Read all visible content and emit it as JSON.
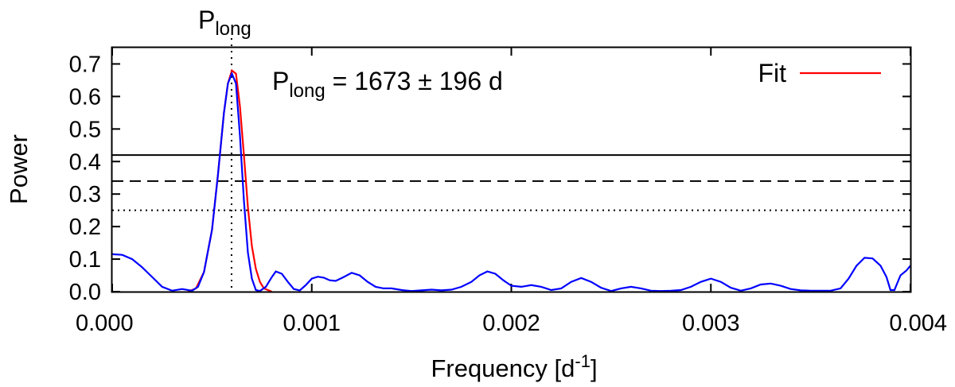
{
  "chart_data": {
    "type": "line",
    "title": "",
    "xlabel": "Frequency [d",
    "xlabel_superscript": "-1",
    "xlabel_suffix": "]",
    "ylabel": "Power",
    "xlim": [
      0.0,
      0.004
    ],
    "ylim": [
      0.0,
      0.75
    ],
    "x_ticks": [
      "0.000",
      "0.001",
      "0.002",
      "0.003",
      "0.004"
    ],
    "y_ticks": [
      "0.0",
      "0.1",
      "0.2",
      "0.3",
      "0.4",
      "0.5",
      "0.6",
      "0.7"
    ],
    "grid": false,
    "legend_position": "top-right",
    "colors": {
      "periodogram": "#0000ff",
      "fit": "#ff0000",
      "lines": "#000000"
    },
    "top_label": {
      "base": "P",
      "subscript": "long"
    },
    "annotation": {
      "base": "P",
      "subscript": "long",
      "rest": " = 1673 ± 196 d"
    },
    "peak_marker_x": 0.000598,
    "fap_levels": [
      {
        "style": "solid",
        "y": 0.42
      },
      {
        "style": "dashed",
        "y": 0.34
      },
      {
        "style": "dotted",
        "y": 0.25
      }
    ],
    "series": [
      {
        "name": "Fit",
        "style": "red-line",
        "x": [
          0.00038,
          0.00042,
          0.00046,
          0.0005,
          0.00053,
          0.00056,
          0.00058,
          0.0006,
          0.00062,
          0.00064,
          0.00066,
          0.00068,
          0.0007,
          0.00072,
          0.00074,
          0.00076,
          0.00078,
          0.0008
        ],
        "y": [
          0.0,
          0.01,
          0.06,
          0.19,
          0.36,
          0.55,
          0.64,
          0.68,
          0.67,
          0.57,
          0.42,
          0.26,
          0.14,
          0.07,
          0.03,
          0.01,
          0.005,
          0.0
        ]
      },
      {
        "name": "",
        "style": "blue-line",
        "x": [
          0.0,
          5e-05,
          0.0001,
          0.00015,
          0.0002,
          0.00025,
          0.0003,
          0.00035,
          0.0004,
          0.00043,
          0.00046,
          0.0005,
          0.00053,
          0.00056,
          0.00058,
          0.0006,
          0.00062,
          0.00064,
          0.00066,
          0.00068,
          0.0007,
          0.00072,
          0.00074,
          0.00077,
          0.0008,
          0.00082,
          0.00085,
          0.00088,
          0.00091,
          0.00094,
          0.00097,
          0.001,
          0.00103,
          0.00106,
          0.00109,
          0.00112,
          0.00116,
          0.0012,
          0.00124,
          0.00128,
          0.00132,
          0.00136,
          0.0014,
          0.00145,
          0.0015,
          0.00155,
          0.0016,
          0.00165,
          0.0017,
          0.00175,
          0.0018,
          0.00184,
          0.00188,
          0.00192,
          0.00196,
          0.002,
          0.00205,
          0.0021,
          0.00215,
          0.0022,
          0.00225,
          0.0023,
          0.00235,
          0.0024,
          0.00245,
          0.0025,
          0.00255,
          0.0026,
          0.00265,
          0.0027,
          0.00275,
          0.0028,
          0.00285,
          0.0029,
          0.00295,
          0.003,
          0.00305,
          0.0031,
          0.00315,
          0.0032,
          0.00325,
          0.0033,
          0.00335,
          0.0034,
          0.00345,
          0.0035,
          0.00355,
          0.0036,
          0.00365,
          0.00369,
          0.00373,
          0.00377,
          0.00381,
          0.00385,
          0.00388,
          0.0039,
          0.00392,
          0.00395,
          0.00398,
          0.004
        ],
        "y": [
          0.115,
          0.113,
          0.1,
          0.075,
          0.045,
          0.015,
          0.003,
          0.008,
          0.003,
          0.015,
          0.06,
          0.19,
          0.36,
          0.55,
          0.64,
          0.67,
          0.64,
          0.48,
          0.28,
          0.12,
          0.04,
          0.005,
          0.002,
          0.015,
          0.045,
          0.062,
          0.055,
          0.03,
          0.008,
          0.004,
          0.02,
          0.04,
          0.046,
          0.043,
          0.035,
          0.033,
          0.045,
          0.058,
          0.05,
          0.03,
          0.015,
          0.01,
          0.01,
          0.005,
          0.002,
          0.004,
          0.006,
          0.004,
          0.006,
          0.015,
          0.03,
          0.05,
          0.062,
          0.055,
          0.035,
          0.018,
          0.015,
          0.02,
          0.015,
          0.005,
          0.01,
          0.03,
          0.042,
          0.03,
          0.012,
          0.002,
          0.01,
          0.015,
          0.01,
          0.003,
          0.002,
          0.003,
          0.005,
          0.015,
          0.03,
          0.04,
          0.03,
          0.012,
          0.003,
          0.01,
          0.022,
          0.025,
          0.018,
          0.008,
          0.004,
          0.003,
          0.003,
          0.003,
          0.01,
          0.04,
          0.08,
          0.104,
          0.102,
          0.08,
          0.045,
          0.005,
          0.005,
          0.05,
          0.065,
          0.08
        ]
      }
    ]
  }
}
